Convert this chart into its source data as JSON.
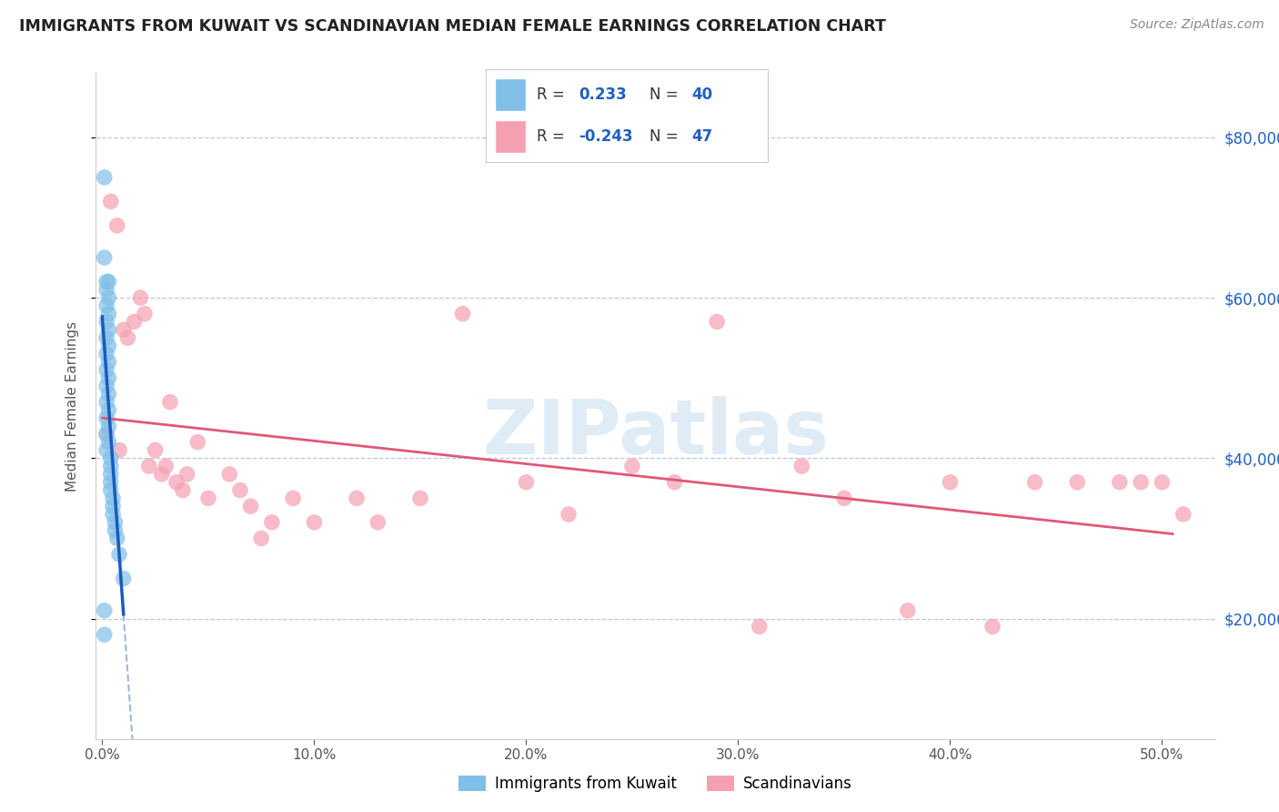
{
  "title": "IMMIGRANTS FROM KUWAIT VS SCANDINAVIAN MEDIAN FEMALE EARNINGS CORRELATION CHART",
  "source": "Source: ZipAtlas.com",
  "ylabel": "Median Female Earnings",
  "ylim": [
    5000,
    88000
  ],
  "xlim": [
    -0.003,
    0.525
  ],
  "yticks": [
    20000,
    40000,
    60000,
    80000
  ],
  "ytick_labels": [
    "$20,000",
    "$40,000",
    "$60,000",
    "$80,000"
  ],
  "xticks": [
    0.0,
    0.1,
    0.2,
    0.3,
    0.4,
    0.5
  ],
  "xtick_labels": [
    "0.0%",
    "10.0%",
    "20.0%",
    "30.0%",
    "40.0%",
    "50.0%"
  ],
  "legend_label1": "Immigrants from Kuwait",
  "legend_label2": "Scandinavians",
  "blue_scatter_color": "#7fbfe8",
  "pink_scatter_color": "#f5a0b0",
  "blue_line_color": "#1a5abf",
  "blue_dashed_color": "#a0b8d8",
  "pink_line_color": "#e05878",
  "watermark_color": "#c5ddf0",
  "title_color": "#222222",
  "source_color": "#888888",
  "axis_color": "#cccccc",
  "tick_color": "#555555",
  "right_tick_color": "#2060c0",
  "grid_color": "#b8c8de",
  "kuwait_x": [
    0.001,
    0.001,
    0.001,
    0.001,
    0.002,
    0.002,
    0.002,
    0.002,
    0.002,
    0.002,
    0.002,
    0.002,
    0.002,
    0.002,
    0.002,
    0.002,
    0.003,
    0.003,
    0.003,
    0.003,
    0.003,
    0.003,
    0.003,
    0.003,
    0.003,
    0.003,
    0.003,
    0.004,
    0.004,
    0.004,
    0.004,
    0.004,
    0.005,
    0.005,
    0.005,
    0.006,
    0.006,
    0.007,
    0.008,
    0.01
  ],
  "kuwait_y": [
    75000,
    65000,
    21000,
    18000,
    62000,
    61000,
    59000,
    57000,
    55000,
    53000,
    51000,
    49000,
    47000,
    45000,
    43000,
    41000,
    62000,
    60000,
    58000,
    56000,
    54000,
    52000,
    50000,
    48000,
    46000,
    44000,
    42000,
    40000,
    39000,
    38000,
    37000,
    36000,
    35000,
    34000,
    33000,
    32000,
    31000,
    30000,
    28000,
    25000
  ],
  "scand_x": [
    0.002,
    0.004,
    0.007,
    0.008,
    0.01,
    0.012,
    0.015,
    0.018,
    0.02,
    0.022,
    0.025,
    0.028,
    0.03,
    0.032,
    0.035,
    0.038,
    0.04,
    0.045,
    0.05,
    0.06,
    0.065,
    0.07,
    0.075,
    0.08,
    0.09,
    0.1,
    0.12,
    0.13,
    0.15,
    0.17,
    0.2,
    0.22,
    0.25,
    0.27,
    0.29,
    0.31,
    0.33,
    0.35,
    0.38,
    0.4,
    0.42,
    0.44,
    0.46,
    0.48,
    0.49,
    0.5,
    0.51
  ],
  "scand_y": [
    43000,
    72000,
    69000,
    41000,
    56000,
    55000,
    57000,
    60000,
    58000,
    39000,
    41000,
    38000,
    39000,
    47000,
    37000,
    36000,
    38000,
    42000,
    35000,
    38000,
    36000,
    34000,
    30000,
    32000,
    35000,
    32000,
    35000,
    32000,
    35000,
    58000,
    37000,
    33000,
    39000,
    37000,
    57000,
    19000,
    39000,
    35000,
    21000,
    37000,
    19000,
    37000,
    37000,
    37000,
    37000,
    37000,
    33000
  ]
}
